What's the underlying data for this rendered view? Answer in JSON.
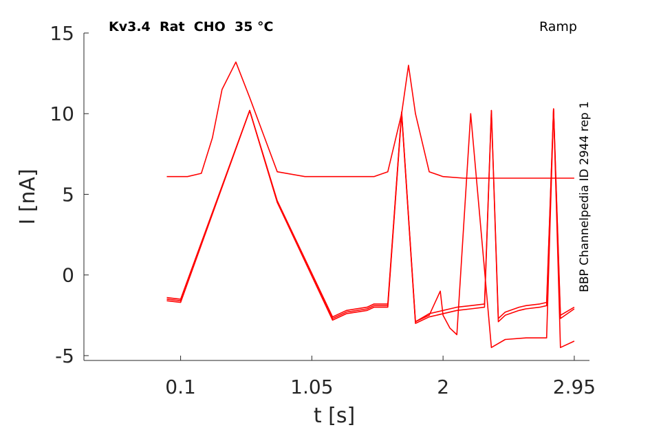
{
  "chart_data": {
    "type": "line",
    "title_left": "Kv3.4  Rat  CHO  35 °C",
    "title_right": "Ramp",
    "side_label": "BBP Channelpedia ID 2944 rep 1",
    "xlabel": "t [s]",
    "ylabel": "I [nA]",
    "xlim": [
      -0.6,
      3.06
    ],
    "ylim": [
      -5.3,
      15
    ],
    "x_ticks": [
      {
        "value": 0.1,
        "label": "0.1"
      },
      {
        "value": 1.05,
        "label": "1.05"
      },
      {
        "value": 2,
        "label": "2"
      },
      {
        "value": 2.95,
        "label": "2.95"
      }
    ],
    "y_ticks": [
      {
        "value": -5,
        "label": "-5"
      },
      {
        "value": 0,
        "label": "0"
      },
      {
        "value": 5,
        "label": "5"
      },
      {
        "value": 10,
        "label": "10"
      },
      {
        "value": 15,
        "label": "15"
      }
    ],
    "color": "#ff0000",
    "series": [
      {
        "x": [
          -0.0,
          0.15,
          0.25,
          0.33,
          0.4,
          0.5,
          0.6,
          0.8,
          1.0,
          1.2,
          1.4,
          1.5,
          1.6,
          1.7,
          1.75,
          1.8,
          1.9,
          2.0,
          2.15,
          2.25,
          2.4,
          2.5,
          2.6,
          2.8,
          2.95
        ],
        "y": [
          6.1,
          6.1,
          6.3,
          8.5,
          11.5,
          13.2,
          11.0,
          6.4,
          6.1,
          6.1,
          6.1,
          6.1,
          6.4,
          10.0,
          13.0,
          10.0,
          6.4,
          6.1,
          6.0,
          6.0,
          6.0,
          6.0,
          6.0,
          6.0,
          6.0
        ]
      },
      {
        "x": [
          -0.0,
          0.1,
          0.6,
          0.8,
          1.2,
          1.3,
          1.45,
          1.5,
          1.6,
          1.7,
          1.8,
          1.9,
          2.1,
          2.2,
          2.3,
          2.35,
          2.4,
          2.45,
          2.55,
          2.6,
          2.7,
          2.75,
          2.8,
          2.85,
          2.95
        ],
        "y": [
          -1.4,
          -1.5,
          10.2,
          4.6,
          -2.6,
          -2.2,
          -2.0,
          -1.8,
          -1.8,
          10.1,
          -2.9,
          -2.4,
          -2.0,
          -1.9,
          -1.8,
          10.2,
          -2.7,
          -2.3,
          -2.0,
          -1.9,
          -1.8,
          -1.7,
          10.3,
          -2.5,
          -2.0
        ]
      },
      {
        "x": [
          -0.0,
          0.1,
          0.6,
          0.8,
          1.2,
          1.3,
          1.45,
          1.5,
          1.6,
          1.7,
          1.8,
          1.9,
          2.1,
          2.2,
          2.3,
          2.35,
          2.4,
          2.45,
          2.55,
          2.6,
          2.7,
          2.75,
          2.8,
          2.85,
          2.95
        ],
        "y": [
          -1.6,
          -1.7,
          10.2,
          4.5,
          -2.8,
          -2.4,
          -2.2,
          -2.0,
          -2.0,
          10.0,
          -3.0,
          -2.6,
          -2.2,
          -2.1,
          -2.0,
          10.2,
          -2.9,
          -2.5,
          -2.2,
          -2.1,
          -2.0,
          -1.9,
          10.3,
          -2.7,
          -2.1
        ]
      },
      {
        "x": [
          -0.0,
          0.1,
          0.6,
          0.8,
          1.2,
          1.3,
          1.45,
          1.5,
          1.6,
          1.7,
          1.8,
          1.9,
          1.98,
          2.0,
          2.05,
          2.1,
          2.2,
          2.35,
          2.45,
          2.6,
          2.75,
          2.8,
          2.85,
          2.95
        ],
        "y": [
          -1.5,
          -1.6,
          10.2,
          4.5,
          -2.7,
          -2.3,
          -2.1,
          -1.9,
          -1.9,
          10.1,
          -2.9,
          -2.5,
          -1.0,
          -2.5,
          -3.3,
          -3.7,
          10.0,
          -4.5,
          -4.0,
          -3.9,
          -3.9,
          10.3,
          -4.5,
          -4.1
        ]
      }
    ]
  }
}
